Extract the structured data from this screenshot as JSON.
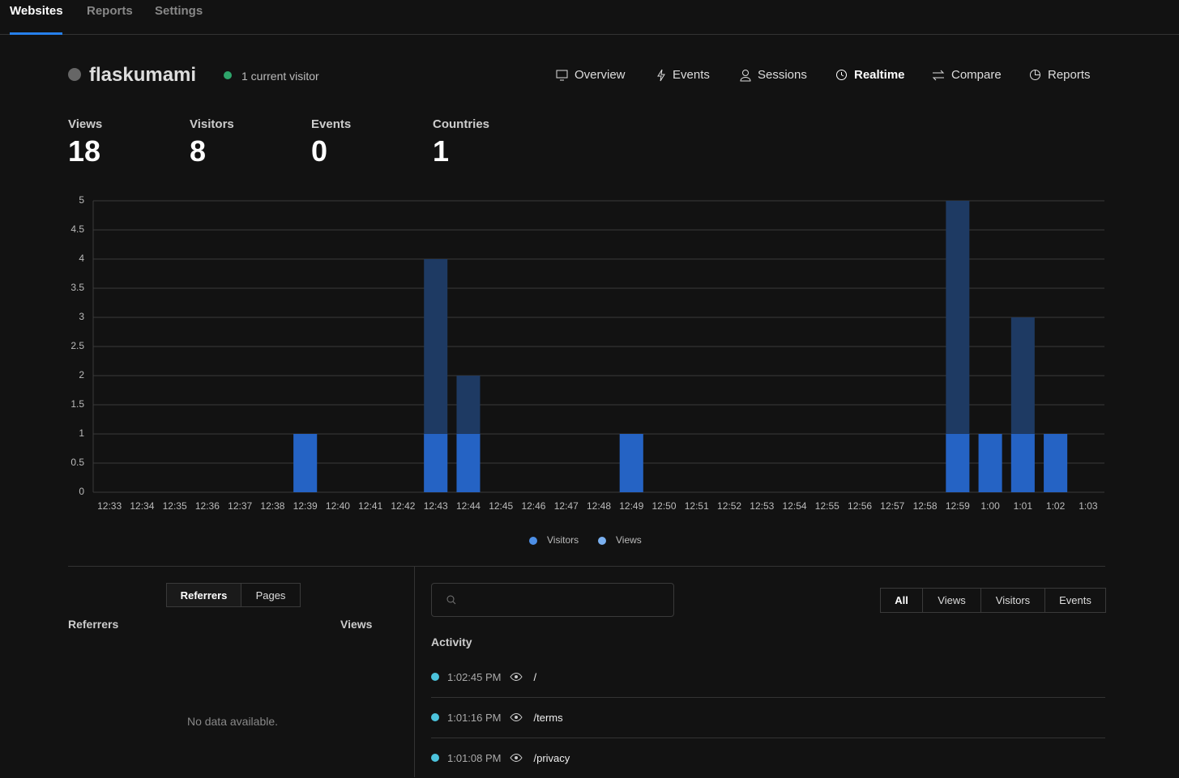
{
  "nav": [
    "Websites",
    "Reports",
    "Settings"
  ],
  "site": {
    "name": "flaskumami",
    "visitors_now": "1 current visitor"
  },
  "tabs": [
    "Overview",
    "Events",
    "Sessions",
    "Realtime",
    "Compare",
    "Reports"
  ],
  "stats": [
    {
      "label": "Views",
      "value": 18
    },
    {
      "label": "Visitors",
      "value": 8
    },
    {
      "label": "Events",
      "value": 0
    },
    {
      "label": "Countries",
      "value": 1
    }
  ],
  "chart_data": {
    "type": "bar",
    "categories": [
      "12:33",
      "12:34",
      "12:35",
      "12:36",
      "12:37",
      "12:38",
      "12:39",
      "12:40",
      "12:41",
      "12:42",
      "12:43",
      "12:44",
      "12:45",
      "12:46",
      "12:47",
      "12:48",
      "12:49",
      "12:50",
      "12:51",
      "12:52",
      "12:53",
      "12:54",
      "12:55",
      "12:56",
      "12:57",
      "12:58",
      "12:59",
      "1:00",
      "1:01",
      "1:02",
      "1:03"
    ],
    "series": [
      {
        "name": "Visitors",
        "color": "#2563c4",
        "legend_color": "#4d8fe6",
        "values": [
          0,
          0,
          0,
          0,
          0,
          0,
          1,
          0,
          0,
          0,
          1,
          1,
          0,
          0,
          0,
          0,
          1,
          0,
          0,
          0,
          0,
          0,
          0,
          0,
          0,
          0,
          1,
          1,
          1,
          1,
          0
        ]
      },
      {
        "name": "Views",
        "color": "#1e3a63",
        "legend_color": "#7ab0f0",
        "values": [
          0,
          0,
          0,
          0,
          0,
          0,
          1,
          0,
          0,
          0,
          4,
          2,
          0,
          0,
          0,
          0,
          1,
          0,
          0,
          0,
          0,
          0,
          0,
          0,
          0,
          0,
          5,
          1,
          3,
          1,
          0
        ]
      }
    ],
    "ylim": [
      0,
      5
    ],
    "yticks": [
      0,
      0.5,
      1,
      1.5,
      2,
      2.5,
      3,
      3.5,
      4,
      4.5,
      5
    ],
    "grid": true
  },
  "referrers": {
    "toggles": [
      "Referrers",
      "Pages"
    ],
    "headers": [
      "Referrers",
      "Views"
    ],
    "empty": "No data available."
  },
  "activity": {
    "filters": [
      "All",
      "Views",
      "Visitors",
      "Events"
    ],
    "title": "Activity",
    "rows": [
      {
        "time": "1:02:45 PM",
        "path": "/"
      },
      {
        "time": "1:01:16 PM",
        "path": "/terms"
      },
      {
        "time": "1:01:08 PM",
        "path": "/privacy"
      }
    ]
  }
}
